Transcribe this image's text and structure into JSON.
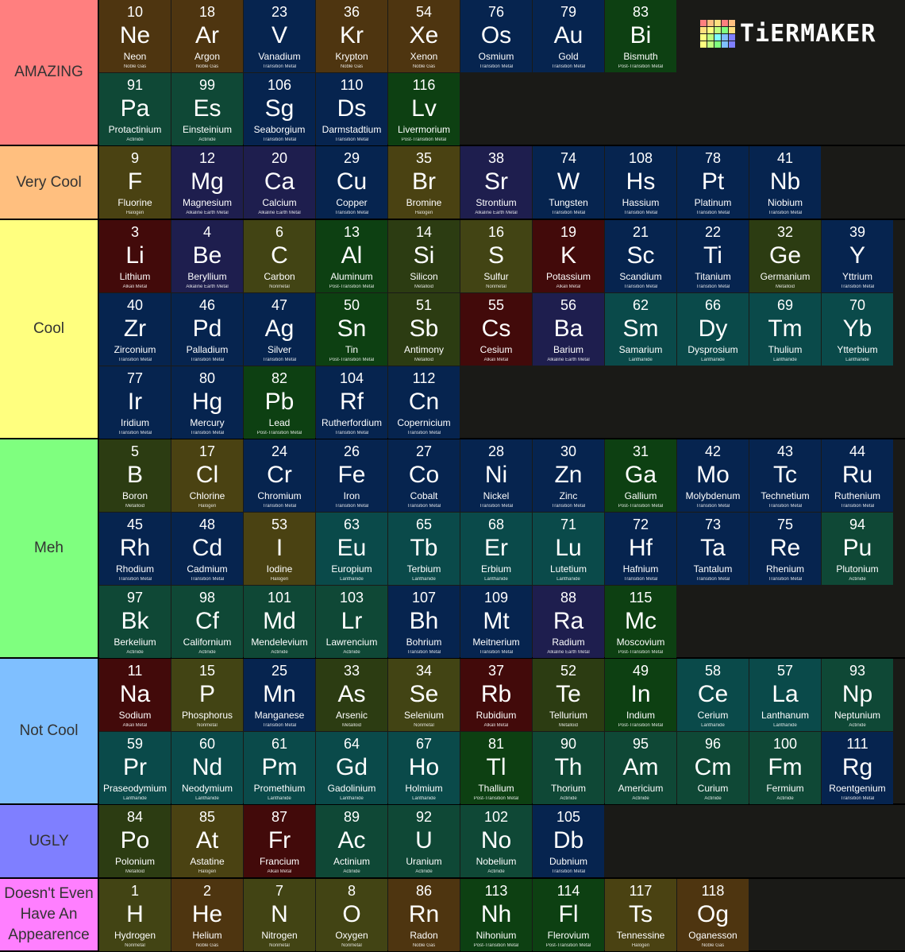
{
  "logo": {
    "text": "TiERMAKER",
    "grid_colors": [
      "#ff7f7f",
      "#ffbf7f",
      "#ffdf7f",
      "#ff7f7f",
      "#ffbf7f",
      "#ffdf7f",
      "#ffff7f",
      "#bfff7f",
      "#7fff7f",
      "#ffdf7f",
      "#ffff7f",
      "#bfff7f",
      "#7fffff",
      "#7fbfff",
      "#7f7fff",
      "#ffff7f",
      "#bfff7f",
      "#7fff7f",
      "#7fbfff",
      "#7f7fff"
    ]
  },
  "category_colors": {
    "Noble Gas": "#4e3510",
    "Transition Metal": "#06244f",
    "Post-Transition Metal": "#0d4012",
    "Actinide": "#0f4836",
    "Alkaline Earth Metal": "#1e1e4e",
    "Halogen": "#4a4212",
    "Nonmetal": "#424414",
    "Alkali Metal": "#420a0a",
    "Metalloid": "#2c3c12",
    "Lanthanide": "#0a4a4a"
  },
  "tiers": [
    {
      "label": "AMAZING",
      "color": "#ff7f7f",
      "elements": [
        [
          "10",
          "Ne",
          "Neon",
          "Noble Gas"
        ],
        [
          "18",
          "Ar",
          "Argon",
          "Noble Gas"
        ],
        [
          "23",
          "V",
          "Vanadium",
          "Transition Metal"
        ],
        [
          "36",
          "Kr",
          "Krypton",
          "Noble Gas"
        ],
        [
          "54",
          "Xe",
          "Xenon",
          "Noble Gas"
        ],
        [
          "76",
          "Os",
          "Osmium",
          "Transition Metal"
        ],
        [
          "79",
          "Au",
          "Gold",
          "Transition Metal"
        ],
        [
          "83",
          "Bi",
          "Bismuth",
          "Post-Transition Metal"
        ],
        [
          "91",
          "Pa",
          "Protactinium",
          "Actinide"
        ],
        [
          "99",
          "Es",
          "Einsteinium",
          "Actinide"
        ],
        [
          "106",
          "Sg",
          "Seaborgium",
          "Transition Metal"
        ],
        [
          "110",
          "Ds",
          "Darmstadtium",
          "Transition Metal"
        ],
        [
          "116",
          "Lv",
          "Livermorium",
          "Post-Transition Metal"
        ]
      ]
    },
    {
      "label": "Very Cool",
      "color": "#ffbf7f",
      "elements": [
        [
          "9",
          "F",
          "Fluorine",
          "Halogen"
        ],
        [
          "12",
          "Mg",
          "Magnesium",
          "Alkaline Earth Metal"
        ],
        [
          "20",
          "Ca",
          "Calcium",
          "Alkaline Earth Metal"
        ],
        [
          "29",
          "Cu",
          "Copper",
          "Transition Metal"
        ],
        [
          "35",
          "Br",
          "Bromine",
          "Halogen"
        ],
        [
          "38",
          "Sr",
          "Strontium",
          "Alkaline Earth Metal"
        ],
        [
          "74",
          "W",
          "Tungsten",
          "Transition Metal"
        ],
        [
          "108",
          "Hs",
          "Hassium",
          "Transition Metal"
        ],
        [
          "78",
          "Pt",
          "Platinum",
          "Transition Metal"
        ],
        [
          "41",
          "Nb",
          "Niobium",
          "Transition Metal"
        ]
      ]
    },
    {
      "label": "Cool",
      "color": "#ffff7f",
      "elements": [
        [
          "3",
          "Li",
          "Lithium",
          "Alkali Metal"
        ],
        [
          "4",
          "Be",
          "Beryllium",
          "Alkaline Earth Metal"
        ],
        [
          "6",
          "C",
          "Carbon",
          "Nonmetal"
        ],
        [
          "13",
          "Al",
          "Aluminum",
          "Post-Transition Metal"
        ],
        [
          "14",
          "Si",
          "Silicon",
          "Metalloid"
        ],
        [
          "16",
          "S",
          "Sulfur",
          "Nonmetal"
        ],
        [
          "19",
          "K",
          "Potassium",
          "Alkali Metal"
        ],
        [
          "21",
          "Sc",
          "Scandium",
          "Transition Metal"
        ],
        [
          "22",
          "Ti",
          "Titanium",
          "Transition Metal"
        ],
        [
          "32",
          "Ge",
          "Germanium",
          "Metalloid"
        ],
        [
          "39",
          "Y",
          "Yttrium",
          "Transition Metal"
        ],
        [
          "40",
          "Zr",
          "Zirconium",
          "Transition Metal"
        ],
        [
          "46",
          "Pd",
          "Palladium",
          "Transition Metal"
        ],
        [
          "47",
          "Ag",
          "Silver",
          "Transition Metal"
        ],
        [
          "50",
          "Sn",
          "Tin",
          "Post-Transition Metal"
        ],
        [
          "51",
          "Sb",
          "Antimony",
          "Metalloid"
        ],
        [
          "55",
          "Cs",
          "Cesium",
          "Alkali Metal"
        ],
        [
          "56",
          "Ba",
          "Barium",
          "Alkaline Earth Metal"
        ],
        [
          "62",
          "Sm",
          "Samarium",
          "Lanthanide"
        ],
        [
          "66",
          "Dy",
          "Dysprosium",
          "Lanthanide"
        ],
        [
          "69",
          "Tm",
          "Thulium",
          "Lanthanide"
        ],
        [
          "70",
          "Yb",
          "Ytterbium",
          "Lanthanide"
        ],
        [
          "77",
          "Ir",
          "Iridium",
          "Transition Metal"
        ],
        [
          "80",
          "Hg",
          "Mercury",
          "Transition Metal"
        ],
        [
          "82",
          "Pb",
          "Lead",
          "Post-Transition Metal"
        ],
        [
          "104",
          "Rf",
          "Rutherfordium",
          "Transition Metal"
        ],
        [
          "112",
          "Cn",
          "Copernicium",
          "Transition Metal"
        ]
      ]
    },
    {
      "label": "Meh",
      "color": "#7fff7f",
      "elements": [
        [
          "5",
          "B",
          "Boron",
          "Metalloid"
        ],
        [
          "17",
          "Cl",
          "Chlorine",
          "Halogen"
        ],
        [
          "24",
          "Cr",
          "Chromium",
          "Transition Metal"
        ],
        [
          "26",
          "Fe",
          "Iron",
          "Transition Metal"
        ],
        [
          "27",
          "Co",
          "Cobalt",
          "Transition Metal"
        ],
        [
          "28",
          "Ni",
          "Nickel",
          "Transition Metal"
        ],
        [
          "30",
          "Zn",
          "Zinc",
          "Transition Metal"
        ],
        [
          "31",
          "Ga",
          "Gallium",
          "Post-Transition Metal"
        ],
        [
          "42",
          "Mo",
          "Molybdenum",
          "Transition Metal"
        ],
        [
          "43",
          "Tc",
          "Technetium",
          "Transition Metal"
        ],
        [
          "44",
          "Ru",
          "Ruthenium",
          "Transition Metal"
        ],
        [
          "45",
          "Rh",
          "Rhodium",
          "Transition Metal"
        ],
        [
          "48",
          "Cd",
          "Cadmium",
          "Transition Metal"
        ],
        [
          "53",
          "I",
          "Iodine",
          "Halogen"
        ],
        [
          "63",
          "Eu",
          "Europium",
          "Lanthanide"
        ],
        [
          "65",
          "Tb",
          "Terbium",
          "Lanthanide"
        ],
        [
          "68",
          "Er",
          "Erbium",
          "Lanthanide"
        ],
        [
          "71",
          "Lu",
          "Lutetium",
          "Lanthanide"
        ],
        [
          "72",
          "Hf",
          "Hafnium",
          "Transition Metal"
        ],
        [
          "73",
          "Ta",
          "Tantalum",
          "Transition Metal"
        ],
        [
          "75",
          "Re",
          "Rhenium",
          "Transition Metal"
        ],
        [
          "94",
          "Pu",
          "Plutonium",
          "Actinide"
        ],
        [
          "97",
          "Bk",
          "Berkelium",
          "Actinide"
        ],
        [
          "98",
          "Cf",
          "Californium",
          "Actinide"
        ],
        [
          "101",
          "Md",
          "Mendelevium",
          "Actinide"
        ],
        [
          "103",
          "Lr",
          "Lawrencium",
          "Actinide"
        ],
        [
          "107",
          "Bh",
          "Bohrium",
          "Transition Metal"
        ],
        [
          "109",
          "Mt",
          "Meitnerium",
          "Transition Metal"
        ],
        [
          "88",
          "Ra",
          "Radium",
          "Alkaline Earth Metal"
        ],
        [
          "115",
          "Mc",
          "Moscovium",
          "Post-Transition Metal"
        ]
      ]
    },
    {
      "label": "Not Cool",
      "color": "#7fbfff",
      "elements": [
        [
          "11",
          "Na",
          "Sodium",
          "Alkali Metal"
        ],
        [
          "15",
          "P",
          "Phosphorus",
          "Nonmetal"
        ],
        [
          "25",
          "Mn",
          "Manganese",
          "Transition Metal"
        ],
        [
          "33",
          "As",
          "Arsenic",
          "Metalloid"
        ],
        [
          "34",
          "Se",
          "Selenium",
          "Nonmetal"
        ],
        [
          "37",
          "Rb",
          "Rubidium",
          "Alkali Metal"
        ],
        [
          "52",
          "Te",
          "Tellurium",
          "Metalloid"
        ],
        [
          "49",
          "In",
          "Indium",
          "Post-Transition Metal"
        ],
        [
          "58",
          "Ce",
          "Cerium",
          "Lanthanide"
        ],
        [
          "57",
          "La",
          "Lanthanum",
          "Lanthanide"
        ],
        [
          "93",
          "Np",
          "Neptunium",
          "Actinide"
        ],
        [
          "59",
          "Pr",
          "Praseodymium",
          "Lanthanide"
        ],
        [
          "60",
          "Nd",
          "Neodymium",
          "Lanthanide"
        ],
        [
          "61",
          "Pm",
          "Promethium",
          "Lanthanide"
        ],
        [
          "64",
          "Gd",
          "Gadolinium",
          "Lanthanide"
        ],
        [
          "67",
          "Ho",
          "Holmium",
          "Lanthanide"
        ],
        [
          "81",
          "Tl",
          "Thallium",
          "Post-Transition Metal"
        ],
        [
          "90",
          "Th",
          "Thorium",
          "Actinide"
        ],
        [
          "95",
          "Am",
          "Americium",
          "Actinide"
        ],
        [
          "96",
          "Cm",
          "Curium",
          "Actinide"
        ],
        [
          "100",
          "Fm",
          "Fermium",
          "Actinide"
        ],
        [
          "111",
          "Rg",
          "Roentgenium",
          "Transition Metal"
        ]
      ]
    },
    {
      "label": "UGLY",
      "color": "#7f7fff",
      "elements": [
        [
          "84",
          "Po",
          "Polonium",
          "Metalloid"
        ],
        [
          "85",
          "At",
          "Astatine",
          "Halogen"
        ],
        [
          "87",
          "Fr",
          "Francium",
          "Alkali Metal"
        ],
        [
          "89",
          "Ac",
          "Actinium",
          "Actinide"
        ],
        [
          "92",
          "U",
          "Uranium",
          "Actinide"
        ],
        [
          "102",
          "No",
          "Nobelium",
          "Actinide"
        ],
        [
          "105",
          "Db",
          "Dubnium",
          "Transition Metal"
        ]
      ]
    },
    {
      "label": "Doesn't Even Have An Appearence",
      "color": "#ff7fff",
      "elements": [
        [
          "1",
          "H",
          "Hydrogen",
          "Nonmetal"
        ],
        [
          "2",
          "He",
          "Helium",
          "Noble Gas"
        ],
        [
          "7",
          "N",
          "Nitrogen",
          "Nonmetal"
        ],
        [
          "8",
          "O",
          "Oxygen",
          "Nonmetal"
        ],
        [
          "86",
          "Rn",
          "Radon",
          "Noble Gas"
        ],
        [
          "113",
          "Nh",
          "Nihonium",
          "Post-Transition Metal"
        ],
        [
          "114",
          "Fl",
          "Flerovium",
          "Post-Transition Metal"
        ],
        [
          "117",
          "Ts",
          "Tennessine",
          "Halogen"
        ],
        [
          "118",
          "Og",
          "Oganesson",
          "Noble Gas"
        ]
      ]
    }
  ]
}
